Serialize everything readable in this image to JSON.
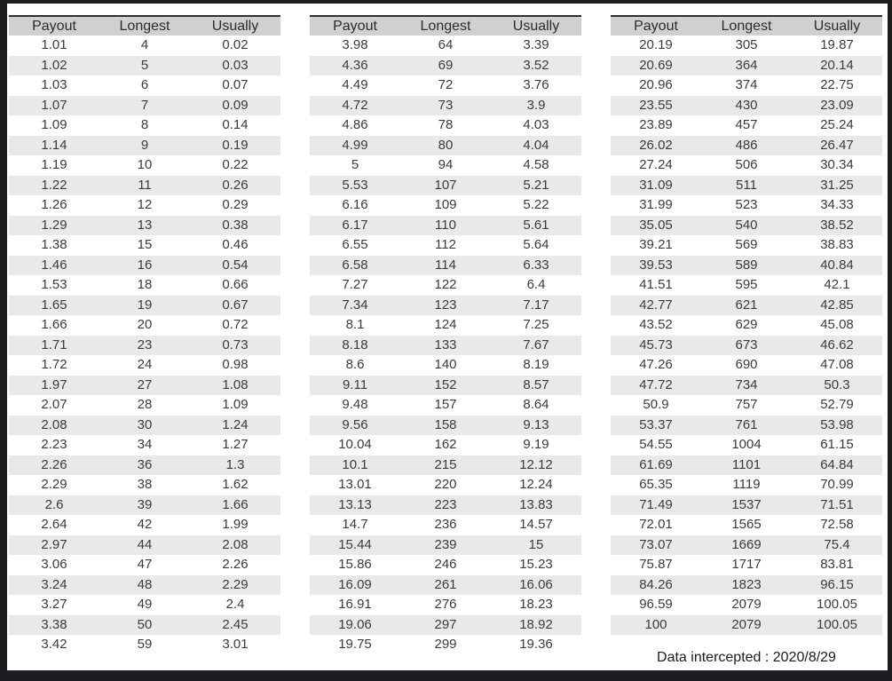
{
  "columns": [
    "Payout",
    "Longest",
    "Usually"
  ],
  "footer": {
    "note": "Data intercepted : 2020/8/29"
  },
  "colors": {
    "frame_bg": "#1b1d21",
    "page_bg": "#ffffff",
    "header_bg": "#d0d0d0",
    "stripe_bg": "#e9e9e9",
    "text_color": "#3b3b3b",
    "border_color": "#2f2f2f"
  },
  "chart_data": [
    {
      "type": "table",
      "columns": [
        "Payout",
        "Longest",
        "Usually"
      ],
      "rows": [
        [
          "1.01",
          "4",
          "0.02"
        ],
        [
          "1.02",
          "5",
          "0.03"
        ],
        [
          "1.03",
          "6",
          "0.07"
        ],
        [
          "1.07",
          "7",
          "0.09"
        ],
        [
          "1.09",
          "8",
          "0.14"
        ],
        [
          "1.14",
          "9",
          "0.19"
        ],
        [
          "1.19",
          "10",
          "0.22"
        ],
        [
          "1.22",
          "11",
          "0.26"
        ],
        [
          "1.26",
          "12",
          "0.29"
        ],
        [
          "1.29",
          "13",
          "0.38"
        ],
        [
          "1.38",
          "15",
          "0.46"
        ],
        [
          "1.46",
          "16",
          "0.54"
        ],
        [
          "1.53",
          "18",
          "0.66"
        ],
        [
          "1.65",
          "19",
          "0.67"
        ],
        [
          "1.66",
          "20",
          "0.72"
        ],
        [
          "1.71",
          "23",
          "0.73"
        ],
        [
          "1.72",
          "24",
          "0.98"
        ],
        [
          "1.97",
          "27",
          "1.08"
        ],
        [
          "2.07",
          "28",
          "1.09"
        ],
        [
          "2.08",
          "30",
          "1.24"
        ],
        [
          "2.23",
          "34",
          "1.27"
        ],
        [
          "2.26",
          "36",
          "1.3"
        ],
        [
          "2.29",
          "38",
          "1.62"
        ],
        [
          "2.6",
          "39",
          "1.66"
        ],
        [
          "2.64",
          "42",
          "1.99"
        ],
        [
          "2.97",
          "44",
          "2.08"
        ],
        [
          "3.06",
          "47",
          "2.26"
        ],
        [
          "3.24",
          "48",
          "2.29"
        ],
        [
          "3.27",
          "49",
          "2.4"
        ],
        [
          "3.38",
          "50",
          "2.45"
        ],
        [
          "3.42",
          "59",
          "3.01"
        ]
      ]
    },
    {
      "type": "table",
      "columns": [
        "Payout",
        "Longest",
        "Usually"
      ],
      "rows": [
        [
          "3.98",
          "64",
          "3.39"
        ],
        [
          "4.36",
          "69",
          "3.52"
        ],
        [
          "4.49",
          "72",
          "3.76"
        ],
        [
          "4.72",
          "73",
          "3.9"
        ],
        [
          "4.86",
          "78",
          "4.03"
        ],
        [
          "4.99",
          "80",
          "4.04"
        ],
        [
          "5",
          "94",
          "4.58"
        ],
        [
          "5.53",
          "107",
          "5.21"
        ],
        [
          "6.16",
          "109",
          "5.22"
        ],
        [
          "6.17",
          "110",
          "5.61"
        ],
        [
          "6.55",
          "112",
          "5.64"
        ],
        [
          "6.58",
          "114",
          "6.33"
        ],
        [
          "7.27",
          "122",
          "6.4"
        ],
        [
          "7.34",
          "123",
          "7.17"
        ],
        [
          "8.1",
          "124",
          "7.25"
        ],
        [
          "8.18",
          "133",
          "7.67"
        ],
        [
          "8.6",
          "140",
          "8.19"
        ],
        [
          "9.11",
          "152",
          "8.57"
        ],
        [
          "9.48",
          "157",
          "8.64"
        ],
        [
          "9.56",
          "158",
          "9.13"
        ],
        [
          "10.04",
          "162",
          "9.19"
        ],
        [
          "10.1",
          "215",
          "12.12"
        ],
        [
          "13.01",
          "220",
          "12.24"
        ],
        [
          "13.13",
          "223",
          "13.83"
        ],
        [
          "14.7",
          "236",
          "14.57"
        ],
        [
          "15.44",
          "239",
          "15"
        ],
        [
          "15.86",
          "246",
          "15.23"
        ],
        [
          "16.09",
          "261",
          "16.06"
        ],
        [
          "16.91",
          "276",
          "18.23"
        ],
        [
          "19.06",
          "297",
          "18.92"
        ],
        [
          "19.75",
          "299",
          "19.36"
        ]
      ]
    },
    {
      "type": "table",
      "columns": [
        "Payout",
        "Longest",
        "Usually"
      ],
      "rows": [
        [
          "20.19",
          "305",
          "19.87"
        ],
        [
          "20.69",
          "364",
          "20.14"
        ],
        [
          "20.96",
          "374",
          "22.75"
        ],
        [
          "23.55",
          "430",
          "23.09"
        ],
        [
          "23.89",
          "457",
          "25.24"
        ],
        [
          "26.02",
          "486",
          "26.47"
        ],
        [
          "27.24",
          "506",
          "30.34"
        ],
        [
          "31.09",
          "511",
          "31.25"
        ],
        [
          "31.99",
          "523",
          "34.33"
        ],
        [
          "35.05",
          "540",
          "38.52"
        ],
        [
          "39.21",
          "569",
          "38.83"
        ],
        [
          "39.53",
          "589",
          "40.84"
        ],
        [
          "41.51",
          "595",
          "42.1"
        ],
        [
          "42.77",
          "621",
          "42.85"
        ],
        [
          "43.52",
          "629",
          "45.08"
        ],
        [
          "45.73",
          "673",
          "46.62"
        ],
        [
          "47.26",
          "690",
          "47.08"
        ],
        [
          "47.72",
          "734",
          "50.3"
        ],
        [
          "50.9",
          "757",
          "52.79"
        ],
        [
          "53.37",
          "761",
          "53.98"
        ],
        [
          "54.55",
          "1004",
          "61.15"
        ],
        [
          "61.69",
          "1101",
          "64.84"
        ],
        [
          "65.35",
          "1119",
          "70.99"
        ],
        [
          "71.49",
          "1537",
          "71.51"
        ],
        [
          "72.01",
          "1565",
          "72.58"
        ],
        [
          "73.07",
          "1669",
          "75.4"
        ],
        [
          "75.87",
          "1717",
          "83.81"
        ],
        [
          "84.26",
          "1823",
          "96.15"
        ],
        [
          "96.59",
          "2079",
          "100.05"
        ],
        [
          "100",
          "2079",
          "100.05"
        ]
      ]
    }
  ]
}
